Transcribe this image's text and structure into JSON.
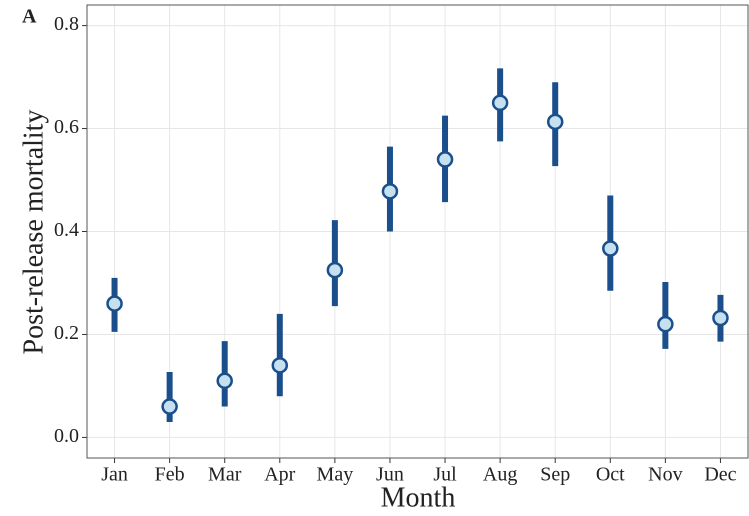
{
  "chart_data": {
    "type": "pointrange",
    "panel_label": "A",
    "x_label": "Month",
    "y_label": "Post-release mortality",
    "categories": [
      "Jan",
      "Feb",
      "Mar",
      "Apr",
      "May",
      "Jun",
      "Jul",
      "Aug",
      "Sep",
      "Oct",
      "Nov",
      "Dec"
    ],
    "values": [
      0.26,
      0.06,
      0.11,
      0.14,
      0.325,
      0.478,
      0.54,
      0.65,
      0.613,
      0.367,
      0.22,
      0.232
    ],
    "lower": [
      0.205,
      0.03,
      0.06,
      0.08,
      0.255,
      0.4,
      0.457,
      0.575,
      0.527,
      0.285,
      0.172,
      0.186
    ],
    "upper": [
      0.31,
      0.127,
      0.187,
      0.24,
      0.422,
      0.565,
      0.625,
      0.717,
      0.69,
      0.47,
      0.302,
      0.277
    ],
    "color": "#1a4f8c",
    "point_fill": "#c6e0f0",
    "ylim": [
      -0.04,
      0.84
    ],
    "yticks": [
      {
        "value": 0,
        "label": "0.0"
      },
      {
        "value": 0.2,
        "label": "0.2"
      },
      {
        "value": 0.4,
        "label": "0.4"
      },
      {
        "value": 0.6,
        "label": "0.6"
      },
      {
        "value": 0.8,
        "label": "0.8"
      }
    ],
    "grid": true
  }
}
